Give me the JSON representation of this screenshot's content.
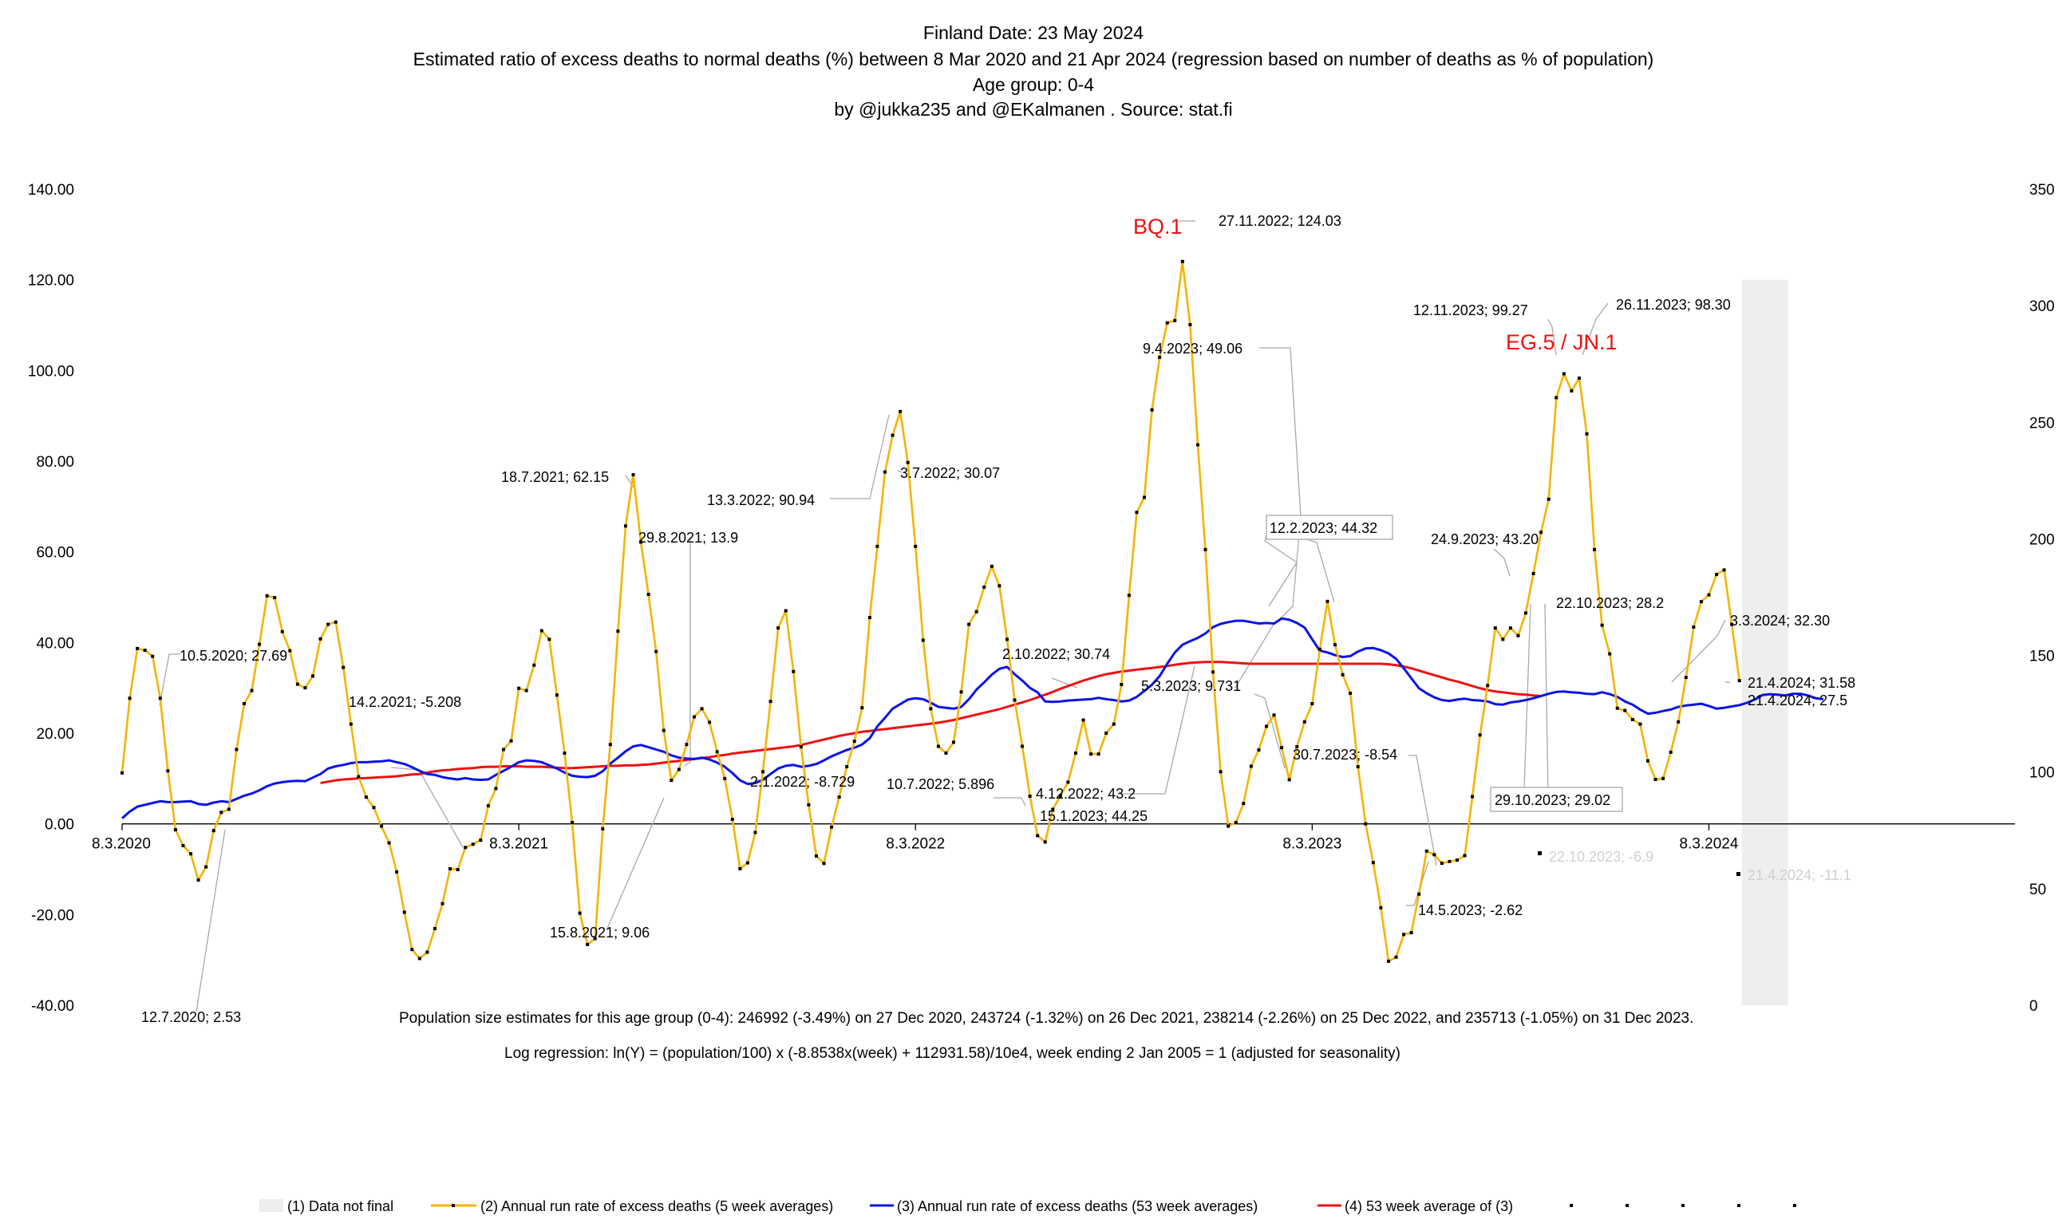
{
  "header": {
    "lines": [
      "Finland  Date: 23 May 2024",
      "Estimated ratio of excess deaths to normal deaths (%) between 8 Mar 2020 and 21 Apr 2024 (regression based on number of deaths as % of population)",
      "Age group: 0-4",
      "by @jukka235 and @EKalmanen . Source: stat.fi"
    ]
  },
  "chart_data": {
    "type": "line",
    "x_start": "8.3.2020",
    "x_end": "21.4.2024",
    "x_tick_labels": [
      "8.3.2020",
      "8.3.2021",
      "8.3.2022",
      "8.3.2023",
      "8.3.2024"
    ],
    "y_left": {
      "min": -40,
      "max": 140,
      "ticks": [
        "-40.00",
        "-20.00",
        "0.00",
        "20.00",
        "40.00",
        "60.00",
        "80.00",
        "100.00",
        "120.00",
        "140.00"
      ]
    },
    "y_right": {
      "min": 0,
      "max": 350,
      "ticks": [
        "0",
        "50",
        "100",
        "150",
        "200",
        "250",
        "300",
        "350"
      ]
    },
    "shaded_region": {
      "from_week": 212,
      "to_week": 217
    },
    "colors": {
      "series5": "#f5b400",
      "series53": "#0a14e6",
      "avg": "#ee1111",
      "shade": "#eeeeee",
      "axis": "#000000"
    },
    "series": [
      {
        "name": "(2) Annual run rate of excess deaths (5 week averages)",
        "values": [
          11.23,
          27.69,
          38.67,
          38.28,
          36.95,
          27.69,
          11.69,
          -1.3,
          -4.8,
          -6.6,
          -12.4,
          -9.5,
          -1.5,
          2.53,
          3.21,
          16.4,
          26.5,
          29.4,
          39.6,
          50.3,
          49.9,
          42.4,
          38.2,
          30.8,
          30.0,
          32.6,
          40.8,
          44.0,
          44.5,
          34.5,
          22.0,
          10.4,
          5.9,
          3.6,
          -0.5,
          -4.2,
          -10.6,
          -19.5,
          -27.7,
          -29.7,
          -28.3,
          -23.1,
          -17.6,
          -9.9,
          -10.1,
          -5.208,
          -4.5,
          -3.6,
          4.0,
          7.8,
          16.4,
          18.3,
          29.9,
          29.4,
          35.0,
          42.6,
          40.7,
          28.4,
          15.6,
          0.3,
          -19.7,
          -26.6,
          -25.3,
          -1.1,
          17.5,
          42.5,
          65.7,
          77.0,
          62.15,
          50.6,
          38.0,
          20.6,
          9.6,
          12.0,
          17.5,
          23.6,
          25.4,
          22.4,
          15.9,
          10.0,
          1.0,
          -9.9,
          -8.6,
          -1.9,
          11.5,
          27.0,
          43.2,
          47.0,
          33.6,
          17.0,
          4.2,
          -7.1,
          -8.729,
          -0.7,
          5.9,
          12.6,
          18.2,
          25.6,
          45.5,
          61.2,
          77.6,
          85.7,
          90.94,
          79.7,
          61.2,
          40.5,
          25.4,
          17.1,
          15.6,
          18.0,
          29.1,
          44.0,
          46.8,
          52.2,
          56.8,
          52.5,
          40.7,
          27.3,
          17.1,
          6.1,
          -2.6,
          -4.0,
          3.2,
          6.2,
          9.2,
          15.6,
          22.9,
          15.4,
          15.4,
          20.0,
          22.0,
          30.74,
          50.4,
          68.7,
          72.0,
          91.3,
          102.9,
          110.5,
          111.0,
          124.03,
          110.1,
          83.6,
          60.5,
          33.5,
          11.5,
          -0.5,
          0.3,
          4.5,
          12.7,
          16.3,
          21.5,
          24.0,
          16.8,
          9.731,
          17.0,
          22.5,
          26.5,
          38.5,
          49.06,
          39.5,
          32.9,
          28.8,
          12.6,
          0.0,
          -8.54,
          -18.5,
          -30.3,
          -29.4,
          -24.4,
          -24.0,
          -15.5,
          -6.0,
          -6.8,
          -8.7,
          -8.3,
          -8.0,
          -7.0,
          6.0,
          19.6,
          30.5,
          43.2,
          40.7,
          43.2,
          41.5,
          46.5,
          55.2,
          64.3,
          71.6,
          94.0,
          99.27,
          95.5,
          98.3,
          86.0,
          60.5,
          43.8,
          37.5,
          25.5,
          25.0,
          23.0,
          22.0,
          13.9,
          9.8,
          10.0,
          15.8,
          22.5,
          32.3,
          43.4,
          49.0,
          50.5,
          55.0,
          56.0,
          44.0,
          31.58
        ]
      },
      {
        "name": "(3) Annual run rate of excess deaths (53 week averages)",
        "values": [
          1.2,
          2.7,
          3.8,
          4.2,
          4.6,
          5.0,
          4.8,
          4.8,
          4.9,
          5.0,
          4.4,
          4.2,
          4.7,
          5.0,
          4.8,
          5.5,
          6.2,
          6.7,
          7.4,
          8.3,
          8.9,
          9.2,
          9.4,
          9.5,
          9.4,
          10.2,
          11.0,
          12.2,
          12.7,
          13.0,
          13.4,
          13.6,
          13.6,
          13.7,
          13.8,
          14.0,
          13.6,
          13.2,
          12.5,
          11.7,
          11.0,
          10.8,
          10.3,
          10.0,
          9.8,
          10.1,
          9.8,
          9.7,
          9.8,
          10.8,
          11.7,
          12.6,
          13.6,
          14.0,
          13.9,
          13.6,
          12.9,
          12.2,
          11.3,
          10.6,
          10.4,
          10.3,
          10.6,
          11.6,
          13.3,
          14.6,
          16.0,
          17.1,
          17.4,
          16.9,
          16.4,
          15.9,
          15.1,
          14.6,
          14.4,
          14.3,
          14.6,
          14.2,
          13.5,
          12.6,
          11.2,
          9.6,
          8.8,
          9.0,
          9.7,
          11.0,
          12.2,
          12.8,
          13.0,
          12.6,
          12.8,
          13.2,
          14.0,
          14.9,
          15.6,
          16.3,
          16.8,
          17.5,
          18.9,
          21.5,
          23.4,
          25.4,
          26.4,
          27.4,
          27.7,
          27.5,
          26.7,
          25.8,
          25.6,
          25.4,
          25.8,
          27.5,
          29.6,
          31.2,
          32.9,
          34.2,
          34.6,
          33.0,
          31.6,
          30.0,
          29.0,
          27.0,
          26.9,
          27.0,
          27.2,
          27.3,
          27.4,
          27.5,
          27.8,
          27.5,
          27.3,
          27.0,
          27.2,
          28.0,
          29.3,
          30.7,
          32.6,
          35.3,
          37.8,
          39.5,
          40.3,
          41.0,
          42.0,
          43.4,
          44.1,
          44.5,
          44.8,
          44.8,
          44.5,
          44.2,
          44.3,
          44.2,
          45.3,
          45.0,
          44.32,
          43.3,
          40.7,
          38.2,
          37.8,
          37.2,
          36.8,
          37.0,
          38.0,
          38.7,
          38.8,
          38.3,
          37.6,
          36.4,
          34.3,
          32.1,
          29.9,
          28.8,
          27.9,
          27.3,
          27.1,
          27.4,
          27.6,
          27.3,
          27.2,
          27.0,
          26.4,
          26.3,
          26.8,
          27.0,
          27.3,
          27.7,
          28.2,
          28.7,
          29.1,
          29.2,
          29.0,
          28.9,
          28.7,
          28.6,
          29.02,
          28.6,
          28.0,
          27.0,
          26.3,
          25.2,
          24.3,
          24.5,
          24.9,
          25.2,
          25.8,
          26.1,
          26.3,
          26.5,
          26.0,
          25.4,
          25.6,
          25.9,
          26.2,
          26.7,
          27.4,
          28.4,
          28.6,
          28.5,
          28.3,
          28.7,
          28.7,
          28.3,
          27.7,
          27.5
        ]
      },
      {
        "name": "(4) 53 week  average of (3)",
        "start_week": 26,
        "values": [
          9.0,
          9.3,
          9.6,
          9.8,
          9.9,
          10.0,
          10.1,
          10.2,
          10.3,
          10.4,
          10.5,
          10.7,
          10.9,
          11.0,
          11.3,
          11.6,
          11.8,
          11.9,
          12.1,
          12.2,
          12.3,
          12.5,
          12.6,
          12.6,
          12.7,
          12.7,
          12.7,
          12.6,
          12.6,
          12.6,
          12.5,
          12.4,
          12.3,
          12.3,
          12.4,
          12.5,
          12.6,
          12.7,
          12.8,
          12.8,
          12.9,
          12.9,
          13.0,
          13.1,
          13.3,
          13.5,
          13.7,
          13.9,
          14.1,
          14.3,
          14.5,
          14.7,
          15.0,
          15.2,
          15.5,
          15.7,
          15.9,
          16.1,
          16.3,
          16.5,
          16.7,
          16.9,
          17.1,
          17.4,
          17.8,
          18.2,
          18.6,
          19.0,
          19.4,
          19.7,
          20.0,
          20.3,
          20.5,
          20.7,
          20.9,
          21.1,
          21.3,
          21.5,
          21.7,
          21.9,
          22.1,
          22.3,
          22.6,
          22.9,
          23.3,
          23.7,
          24.1,
          24.5,
          24.9,
          25.3,
          25.8,
          26.3,
          26.8,
          27.3,
          27.9,
          28.5,
          29.1,
          29.8,
          30.4,
          31.0,
          31.6,
          32.1,
          32.6,
          33.0,
          33.3,
          33.6,
          33.8,
          34.0,
          34.2,
          34.4,
          34.6,
          34.8,
          35.1,
          35.3,
          35.5,
          35.6,
          35.7,
          35.7,
          35.7,
          35.6,
          35.5,
          35.4,
          35.3,
          35.3,
          35.3,
          35.3,
          35.3,
          35.3,
          35.3,
          35.3,
          35.3,
          35.3,
          35.3,
          35.3,
          35.3,
          35.3,
          35.3,
          35.3,
          35.3,
          35.3,
          35.2,
          35.0,
          34.7,
          34.3,
          33.8,
          33.3,
          32.8,
          32.3,
          31.8,
          31.4,
          30.9,
          30.4,
          29.9,
          29.5,
          29.2,
          29.0,
          28.8,
          28.6,
          28.5,
          28.3,
          28.2
        ]
      }
    ],
    "annotations": [
      "10.5.2020; 27.69",
      "12.7.2020; 2.53",
      "14.2.2021; -5.208",
      "18.7.2021; 62.15",
      "29.8.2021; 13.9",
      "15.8.2021; 9.06",
      "13.3.2022; 90.94",
      "3.7.2022; 30.07",
      "2.1.2022; -8.729",
      "10.7.2022; 5.896",
      "2.10.2022; 30.74",
      "4.12.2022; 43.2",
      "15.1.2023; 44.25",
      "27.11.2022; 124.03",
      "9.4.2023; 49.06",
      "12.2.2023; 44.32",
      "5.3.2023; 9.731",
      "30.7.2023; -8.54",
      "14.5.2023; -2.62",
      "24.9.2023; 43.20",
      "12.11.2023; 99.27",
      "26.11.2023; 98.30",
      "22.10.2023; 28.2",
      "29.10.2023; 29.02",
      "3.3.2024; 32.30",
      "21.4.2024; 31.58",
      "21.4.2024; 27.5",
      "22.10.2023; -6.9",
      "21.4.2024; -11.1"
    ],
    "variant_labels": [
      "BQ.1",
      "EG.5 / JN.1"
    ],
    "legend": [
      "(1) Data not final",
      "(2) Annual run rate of excess deaths (5 week averages)",
      "(3) Annual run rate of excess deaths (53 week averages)",
      "(4) 53 week  average of (3)"
    ]
  },
  "footnotes": {
    "population": "Population size estimates for this age group (0-4): 246992 (-3.49%) on 27 Dec 2020, 243724 (-1.32%) on 26 Dec 2021, 238214 (-2.26%) on 25 Dec 2022, and 235713  (-1.05%) on 31 Dec 2023.",
    "regression": "Log regression:  ln(Y) = (population/100) x (-8.8538x(week) + 112931.58)/10e4, week ending 2 Jan 2005 = 1 (adjusted for seasonality)"
  }
}
